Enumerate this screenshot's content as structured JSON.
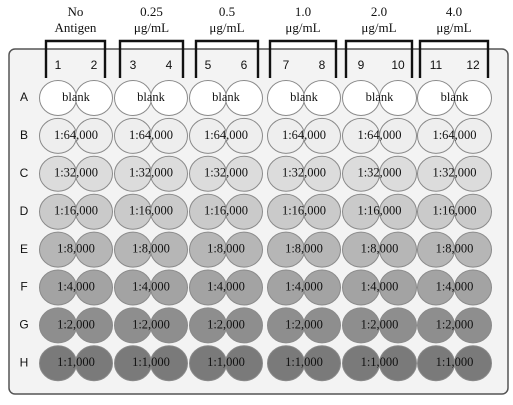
{
  "groups": [
    {
      "line1": "No",
      "line2": "Antigen",
      "cols": [
        "1",
        "2"
      ]
    },
    {
      "line1": "0.25",
      "line2": "μg/mL",
      "cols": [
        "3",
        "4"
      ]
    },
    {
      "line1": "0.5",
      "line2": "μg/mL",
      "cols": [
        "5",
        "6"
      ]
    },
    {
      "line1": "1.0",
      "line2": "μg/mL",
      "cols": [
        "7",
        "8"
      ]
    },
    {
      "line1": "2.0",
      "line2": "μg/mL",
      "cols": [
        "9",
        "10"
      ]
    },
    {
      "line1": "4.0",
      "line2": "μg/mL",
      "cols": [
        "11",
        "12"
      ]
    }
  ],
  "rows": [
    {
      "letter": "A",
      "label": "blank",
      "fill": "#ffffff"
    },
    {
      "letter": "B",
      "label": "1:64,000",
      "fill": "#eeeeee"
    },
    {
      "letter": "C",
      "label": "1:32,000",
      "fill": "#dcdcdc"
    },
    {
      "letter": "D",
      "label": "1:16,000",
      "fill": "#cacaca"
    },
    {
      "letter": "E",
      "label": "1:8,000",
      "fill": "#b6b6b6"
    },
    {
      "letter": "F",
      "label": "1:4,000",
      "fill": "#a3a3a3"
    },
    {
      "letter": "G",
      "label": "1:2,000",
      "fill": "#8e8e8e"
    },
    {
      "letter": "H",
      "label": "1:1,000",
      "fill": "#7a7a7a"
    }
  ],
  "colors": {
    "plate_fill": "#f3f3f3",
    "plate_border": "#555555",
    "bracket": "#111111",
    "well_border": "#8a8a8a"
  }
}
